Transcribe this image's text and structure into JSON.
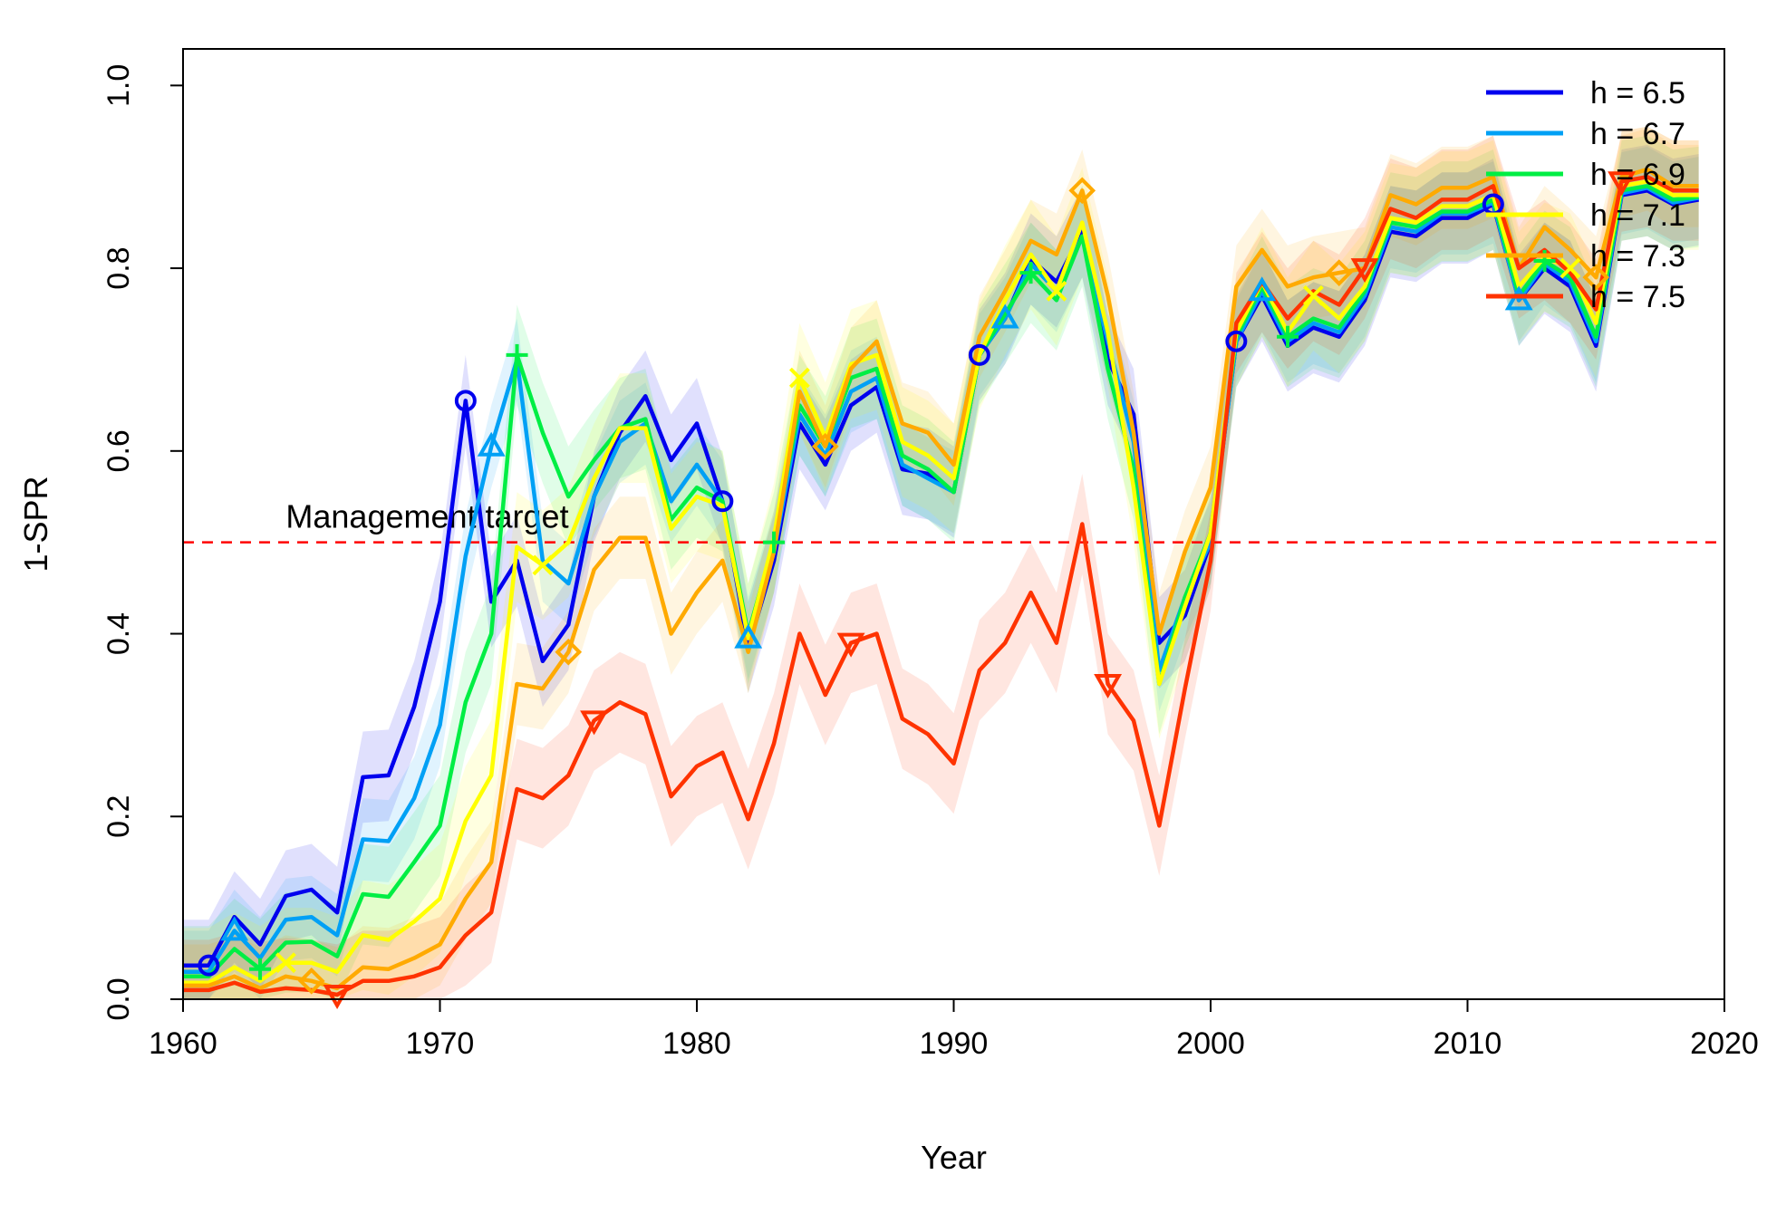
{
  "chart_data": {
    "type": "line",
    "xlabel": "Year",
    "ylabel": "1-SPR",
    "xlim": [
      1960,
      2020
    ],
    "ylim": [
      0,
      1.04
    ],
    "x_ticks": [
      1960,
      1970,
      1980,
      1990,
      2000,
      2010,
      2020
    ],
    "y_ticks": [
      0.0,
      0.2,
      0.4,
      0.6,
      0.8,
      1.0
    ],
    "x_tick_labels": [
      "1960",
      "1970",
      "1980",
      "1990",
      "2000",
      "2010",
      "2020"
    ],
    "y_tick_labels": [
      "0.0",
      "0.2",
      "0.4",
      "0.6",
      "0.8",
      "1.0"
    ],
    "legend_position": "top-right",
    "reference_line": {
      "y": 0.5,
      "color": "#ff0000",
      "style": "dashed",
      "label": "Management target"
    },
    "x": [
      1960,
      1961,
      1962,
      1963,
      1964,
      1965,
      1966,
      1967,
      1968,
      1969,
      1970,
      1971,
      1972,
      1973,
      1974,
      1975,
      1976,
      1977,
      1978,
      1979,
      1980,
      1981,
      1982,
      1983,
      1984,
      1985,
      1986,
      1987,
      1988,
      1989,
      1990,
      1991,
      1992,
      1993,
      1994,
      1995,
      1996,
      1997,
      1998,
      1999,
      2000,
      2001,
      2002,
      2003,
      2004,
      2005,
      2006,
      2007,
      2008,
      2009,
      2010,
      2011,
      2012,
      2013,
      2014,
      2015,
      2016,
      2017,
      2018,
      2019
    ],
    "series": [
      {
        "name": "h = 6.5",
        "color": "#0000ee",
        "marker": "circle",
        "marker_years": [
          1961,
          1971,
          1981,
          1991,
          2001,
          2011
        ],
        "band": 0.05,
        "values": [
          0.037,
          0.037,
          0.09,
          0.06,
          0.113,
          0.12,
          0.095,
          0.243,
          0.245,
          0.32,
          0.435,
          0.655,
          0.435,
          0.48,
          0.37,
          0.41,
          0.55,
          0.62,
          0.66,
          0.59,
          0.63,
          0.545,
          0.385,
          0.48,
          0.63,
          0.585,
          0.65,
          0.67,
          0.58,
          0.575,
          0.555,
          0.705,
          0.745,
          0.81,
          0.785,
          0.84,
          0.7,
          0.64,
          0.39,
          0.42,
          0.5,
          0.72,
          0.77,
          0.715,
          0.735,
          0.725,
          0.765,
          0.84,
          0.835,
          0.855,
          0.855,
          0.87,
          0.765,
          0.8,
          0.78,
          0.715,
          0.88,
          0.885,
          0.87,
          0.875
        ]
      },
      {
        "name": "h = 6.7",
        "color": "#00a0f5",
        "marker": "triangle",
        "marker_years": [
          1962,
          1972,
          1982,
          1992,
          2002,
          2012
        ],
        "band": 0.045,
        "values": [
          0.03,
          0.03,
          0.075,
          0.045,
          0.087,
          0.09,
          0.07,
          0.175,
          0.173,
          0.22,
          0.3,
          0.485,
          0.605,
          0.7,
          0.48,
          0.455,
          0.55,
          0.61,
          0.63,
          0.545,
          0.585,
          0.545,
          0.395,
          0.49,
          0.64,
          0.595,
          0.665,
          0.68,
          0.585,
          0.57,
          0.555,
          0.705,
          0.745,
          0.805,
          0.775,
          0.835,
          0.72,
          0.61,
          0.36,
          0.44,
          0.5,
          0.72,
          0.775,
          0.72,
          0.74,
          0.73,
          0.77,
          0.845,
          0.84,
          0.86,
          0.86,
          0.872,
          0.765,
          0.805,
          0.785,
          0.72,
          0.882,
          0.888,
          0.872,
          0.877
        ]
      },
      {
        "name": "h = 6.9",
        "color": "#00ee44",
        "marker": "plus",
        "marker_years": [
          1963,
          1973,
          1983,
          1993,
          2003,
          2013
        ],
        "band": 0.055,
        "values": [
          0.025,
          0.025,
          0.055,
          0.033,
          0.062,
          0.063,
          0.047,
          0.115,
          0.112,
          0.15,
          0.19,
          0.325,
          0.4,
          0.705,
          0.62,
          0.55,
          0.59,
          0.625,
          0.635,
          0.525,
          0.56,
          0.545,
          0.4,
          0.5,
          0.65,
          0.605,
          0.68,
          0.69,
          0.595,
          0.58,
          0.555,
          0.705,
          0.75,
          0.795,
          0.765,
          0.835,
          0.69,
          0.58,
          0.345,
          0.44,
          0.51,
          0.725,
          0.78,
          0.725,
          0.745,
          0.735,
          0.775,
          0.85,
          0.845,
          0.862,
          0.862,
          0.875,
          0.77,
          0.808,
          0.79,
          0.725,
          0.885,
          0.89,
          0.875,
          0.878
        ]
      },
      {
        "name": "h = 7.1",
        "color": "#ffff00",
        "marker": "cross",
        "marker_years": [
          1964,
          1974,
          1984,
          1994,
          2004,
          2014
        ],
        "band": 0.06,
        "values": [
          0.018,
          0.018,
          0.035,
          0.02,
          0.04,
          0.04,
          0.03,
          0.07,
          0.065,
          0.085,
          0.11,
          0.195,
          0.245,
          0.495,
          0.475,
          0.5,
          0.57,
          0.625,
          0.625,
          0.515,
          0.55,
          0.54,
          0.395,
          0.505,
          0.68,
          0.615,
          0.695,
          0.705,
          0.61,
          0.595,
          0.57,
          0.705,
          0.765,
          0.815,
          0.775,
          0.85,
          0.73,
          0.56,
          0.345,
          0.43,
          0.51,
          0.73,
          0.785,
          0.73,
          0.77,
          0.745,
          0.78,
          0.855,
          0.85,
          0.868,
          0.868,
          0.88,
          0.78,
          0.812,
          0.8,
          0.74,
          0.89,
          0.895,
          0.88,
          0.88
        ]
      },
      {
        "name": "h = 7.3",
        "color": "#ffaa00",
        "marker": "diamond",
        "marker_years": [
          1965,
          1975,
          1985,
          1995,
          2005,
          2015
        ],
        "band": 0.045,
        "values": [
          0.015,
          0.015,
          0.025,
          0.012,
          0.025,
          0.02,
          0.012,
          0.035,
          0.033,
          0.045,
          0.06,
          0.11,
          0.15,
          0.345,
          0.34,
          0.38,
          0.47,
          0.505,
          0.505,
          0.4,
          0.445,
          0.48,
          0.38,
          0.49,
          0.665,
          0.605,
          0.69,
          0.72,
          0.63,
          0.62,
          0.585,
          0.725,
          0.775,
          0.83,
          0.815,
          0.885,
          0.77,
          0.62,
          0.4,
          0.49,
          0.56,
          0.78,
          0.82,
          0.78,
          0.79,
          0.795,
          0.8,
          0.88,
          0.87,
          0.888,
          0.888,
          0.9,
          0.8,
          0.845,
          0.82,
          0.79,
          0.9,
          0.908,
          0.89,
          0.89
        ]
      },
      {
        "name": "h = 7.5",
        "color": "#ff3300",
        "marker": "triangle-down",
        "marker_years": [
          1966,
          1976,
          1986,
          1996,
          2006,
          2016
        ],
        "band": 0.055,
        "values": [
          0.01,
          0.01,
          0.018,
          0.008,
          0.012,
          0.01,
          0.005,
          0.02,
          0.02,
          0.025,
          0.035,
          0.07,
          0.095,
          0.23,
          0.22,
          0.245,
          0.305,
          0.325,
          0.312,
          0.222,
          0.255,
          0.27,
          0.197,
          0.28,
          0.4,
          0.333,
          0.39,
          0.4,
          0.307,
          0.29,
          0.258,
          0.36,
          0.39,
          0.445,
          0.39,
          0.52,
          0.345,
          0.305,
          0.19,
          0.34,
          0.48,
          0.74,
          0.785,
          0.745,
          0.775,
          0.76,
          0.8,
          0.865,
          0.855,
          0.875,
          0.875,
          0.89,
          0.8,
          0.82,
          0.795,
          0.755,
          0.895,
          0.9,
          0.885,
          0.885
        ]
      }
    ]
  }
}
